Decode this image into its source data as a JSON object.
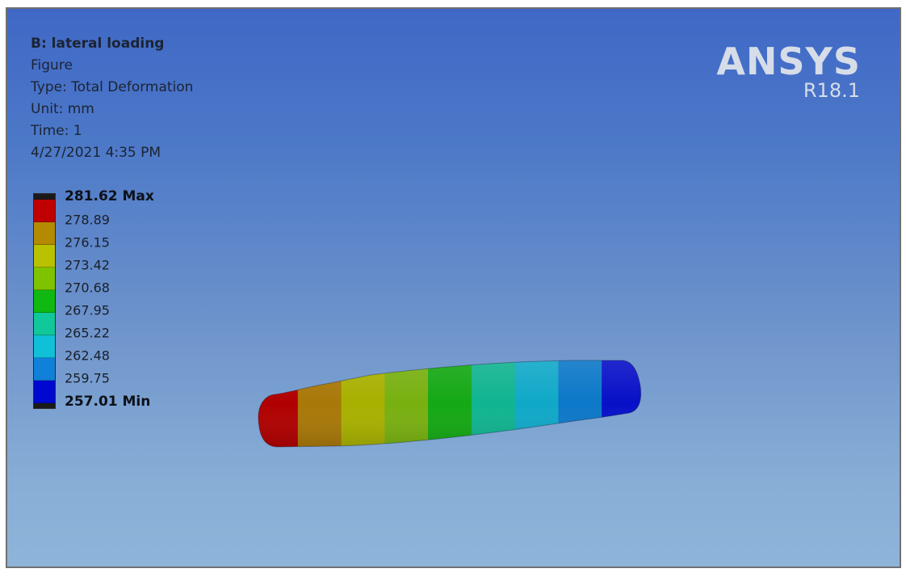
{
  "header": {
    "title": "B: lateral loading",
    "lines": [
      "Figure",
      "Type: Total Deformation",
      "Unit: mm",
      "Time: 1",
      "4/27/2021 4:35 PM"
    ]
  },
  "logo": {
    "brand": "ANSYS",
    "version": "R18.1"
  },
  "legend": {
    "max_label": "281.62 Max",
    "min_label": "257.01 Min",
    "values": [
      "278.89",
      "276.15",
      "273.42",
      "270.68",
      "267.95",
      "265.22",
      "262.48",
      "259.75"
    ],
    "colors": [
      "#c00000",
      "#b38a00",
      "#b8c200",
      "#7fc200",
      "#10b812",
      "#10c89a",
      "#10c0d8",
      "#1080d8",
      "#0008d0"
    ]
  },
  "model": {
    "band_colors": [
      "#b00000",
      "#a87808",
      "#a8b000",
      "#78b010",
      "#14a814",
      "#10b490",
      "#10a8c8",
      "#0c78c8",
      "#0810c8"
    ]
  }
}
